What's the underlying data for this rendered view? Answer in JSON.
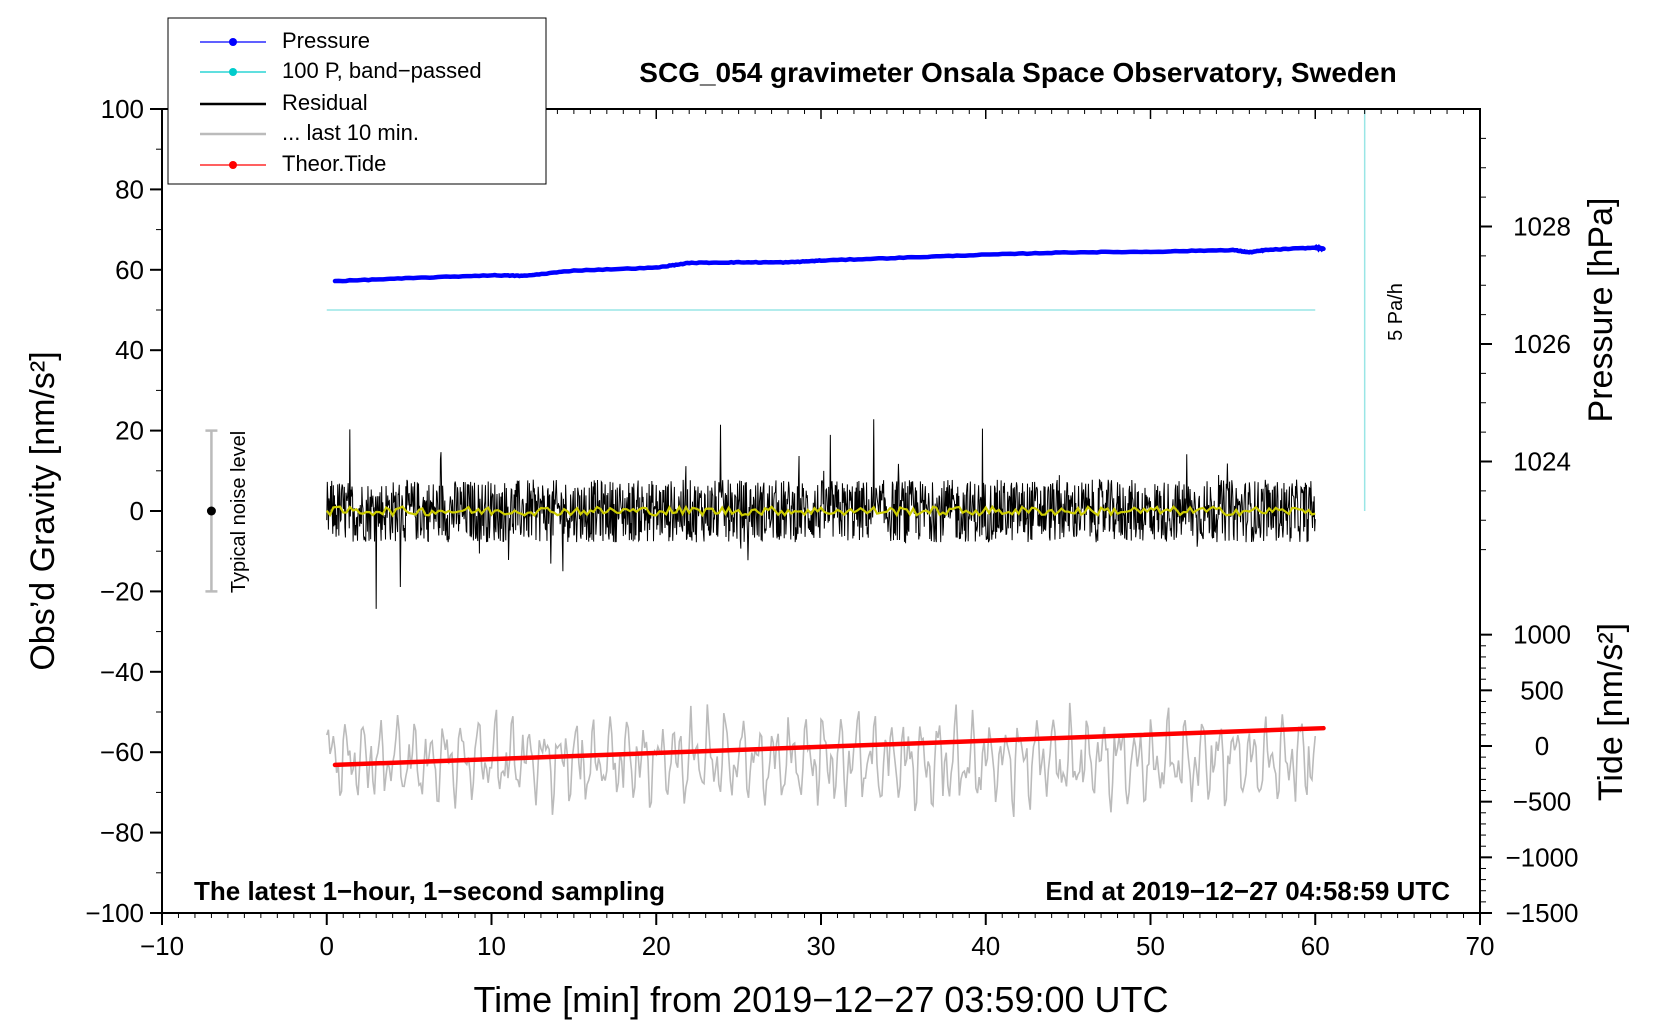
{
  "chart_data": {
    "type": "line",
    "title": "SCG_054 gravimeter Onsala Space Observatory, Sweden",
    "xlabel": "Time [min] from 2019−12−27 03:59:00 UTC",
    "ylabel_left": "Obs’d Gravity [nm/s²]",
    "ylabel_right_top": "Pressure [hPa]",
    "ylabel_right_bottom": "Tide [nm/s²]",
    "xlim": [
      -10,
      70
    ],
    "ylim": [
      -100,
      100
    ],
    "pressure_lim": [
      1022,
      1030
    ],
    "tide_lim": [
      -1500,
      1500
    ],
    "xticks": [
      -10,
      0,
      10,
      20,
      30,
      40,
      50,
      60,
      70
    ],
    "xtick_labels": [
      "−10",
      "0",
      "10",
      "20",
      "30",
      "40",
      "50",
      "60",
      "70"
    ],
    "yticks": [
      -100,
      -80,
      -60,
      -40,
      -20,
      0,
      20,
      40,
      60,
      80,
      100
    ],
    "ytick_labels": [
      "−100",
      "−80",
      "−60",
      "−40",
      "−20",
      "0",
      "20",
      "40",
      "60",
      "80",
      "100"
    ],
    "pressure_ticks": [
      1024,
      1026,
      1028
    ],
    "pressure_tick_labels": [
      "1024",
      "1026",
      "1028"
    ],
    "tide_ticks": [
      -1500,
      -1000,
      -500,
      0,
      500,
      1000
    ],
    "tide_tick_labels": [
      "−1500",
      "−1000",
      "−500",
      "0",
      "500",
      "1000"
    ],
    "legend": {
      "position": "top-left",
      "entries": [
        {
          "label": "Pressure",
          "color": "#0000ff",
          "marker": true
        },
        {
          "label": "100 P, band−passed",
          "color": "#00cccc",
          "marker": true
        },
        {
          "label": "Residual",
          "color": "#000000",
          "marker": false
        },
        {
          "label": "... last 10 min.",
          "color": "#bbbbbb",
          "marker": false
        },
        {
          "label": "Theor.Tide",
          "color": "#ff0000",
          "marker": true
        }
      ]
    },
    "annotations": {
      "left_bottom": "The latest 1−hour, 1−second sampling",
      "right_bottom": "End at 2019−12−27 04:58:59 UTC",
      "noise_label": "Typical noise level",
      "scale_label": "5 Pa/h"
    },
    "noise_bar": {
      "x": -7,
      "center": 0,
      "half_range": 20
    },
    "scale_bar": {
      "x": 63,
      "y_from": 0,
      "y_to": 100
    },
    "series": [
      {
        "name": "Pressure",
        "color": "#0000ff",
        "axis": "pressure",
        "x": [
          0.5,
          5,
          10,
          12,
          15,
          20,
          22,
          25,
          28,
          30,
          35,
          40,
          45,
          50,
          55,
          56,
          57,
          60,
          60.5
        ],
        "y": [
          1027.07,
          1027.12,
          1027.17,
          1027.16,
          1027.25,
          1027.3,
          1027.38,
          1027.39,
          1027.39,
          1027.42,
          1027.47,
          1027.52,
          1027.56,
          1027.57,
          1027.6,
          1027.56,
          1027.6,
          1027.64,
          1027.62
        ]
      },
      {
        "name": "100 P, band−passed",
        "color": "#00cccc",
        "axis": "gravity",
        "x": [
          0,
          60
        ],
        "y": [
          50,
          50
        ]
      },
      {
        "name": "Residual",
        "color": "#000000",
        "axis": "gravity",
        "x": [
          0,
          60
        ],
        "amplitude": 12,
        "y_center": 0
      },
      {
        "name": "Residual smoothed",
        "color": "#cccc00",
        "axis": "gravity",
        "x": [
          0,
          60
        ],
        "y": [
          0,
          0
        ]
      },
      {
        "name": "... last 10 min.",
        "color": "#bbbbbb",
        "axis": "gravity",
        "x": [
          0,
          60
        ],
        "y_center": -62,
        "amplitude": 10
      },
      {
        "name": "Theor.Tide",
        "color": "#ff0000",
        "axis": "tide",
        "x": [
          0.5,
          60.5
        ],
        "y": [
          -170,
          160
        ]
      }
    ]
  }
}
